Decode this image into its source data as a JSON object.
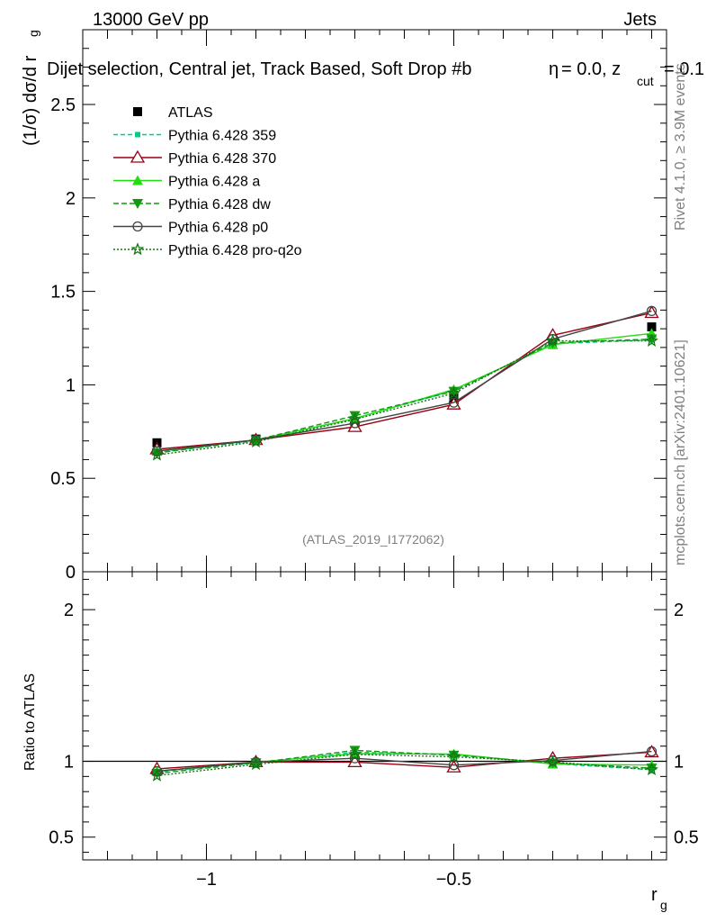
{
  "header": {
    "left": "13000 GeV pp",
    "right": "Jets",
    "selection_main": "Dijet selection, Central jet, Track Based, Soft Drop #b",
    "selection_tail": "= 0.0, z",
    "selection_sub": "cut",
    "selection_end": "= 0.1",
    "beta_symbol": "η"
  },
  "side_labels": {
    "rivet": "Rivet 4.1.0, ≥ 3.9M events",
    "mcplots": "mcplots.cern.ch [arXiv:2401.10621]"
  },
  "watermark": "(ATLAS_2019_I1772062)",
  "chart_data": [
    {
      "type": "line",
      "panel": "main",
      "ylabel": "(1/σ) dσ/d r",
      "ylabel_sub": "g",
      "xlim": [
        -1.25,
        -0.07
      ],
      "ylim": [
        0,
        2.9
      ],
      "yticks": [
        0,
        0.5,
        1,
        1.5,
        2,
        2.5
      ],
      "ytick_labels": [
        "0",
        "0.5",
        "1",
        "1.5",
        "2",
        "2.5"
      ],
      "x": [
        -1.1,
        -0.9,
        -0.7,
        -0.5,
        -0.3,
        -0.1
      ],
      "series": [
        {
          "name": "ATLAS",
          "color": "#000000",
          "marker": "square-filled",
          "dash": "none",
          "values": [
            0.69,
            0.71,
            0.78,
            0.93,
            1.24,
            1.31
          ]
        },
        {
          "name": "Pythia 6.428 359",
          "color": "#00cc88",
          "marker": "square-small",
          "dash": "5,3",
          "values": [
            0.64,
            0.7,
            0.82,
            0.97,
            1.22,
            1.24
          ]
        },
        {
          "name": "Pythia 6.428 370",
          "color": "#990011",
          "marker": "triangle-open",
          "dash": "none",
          "values": [
            0.655,
            0.705,
            0.775,
            0.895,
            1.265,
            1.385
          ]
        },
        {
          "name": "Pythia 6.428 a",
          "color": "#22dd11",
          "marker": "triangle-filled",
          "dash": "none",
          "values": [
            0.645,
            0.705,
            0.82,
            0.975,
            1.215,
            1.275
          ]
        },
        {
          "name": "Pythia 6.428 dw",
          "color": "#119911",
          "marker": "triangle-down-filled",
          "dash": "6,3",
          "values": [
            0.635,
            0.705,
            0.835,
            0.965,
            1.225,
            1.245
          ]
        },
        {
          "name": "Pythia 6.428 p0",
          "color": "#444444",
          "marker": "circle-open",
          "dash": "none",
          "values": [
            0.645,
            0.705,
            0.795,
            0.905,
            1.245,
            1.395
          ]
        },
        {
          "name": "Pythia 6.428 pro-q2o",
          "color": "#117711",
          "marker": "star",
          "dash": "2,2",
          "values": [
            0.625,
            0.695,
            0.815,
            0.955,
            1.235,
            1.235
          ]
        }
      ]
    },
    {
      "type": "line",
      "panel": "ratio",
      "ylabel": "Ratio to ATLAS",
      "xlabel": "r",
      "xlabel_sub": "g",
      "xlim": [
        -1.25,
        -0.07
      ],
      "ylim": [
        0.35,
        2.25
      ],
      "yticks": [
        0.5,
        1,
        2
      ],
      "ytick_labels": [
        "0.5",
        "1",
        "2"
      ],
      "xticks": [
        -1,
        -0.5
      ],
      "xtick_labels": [
        "−1",
        "−0.5"
      ],
      "x": [
        -1.1,
        -0.9,
        -0.7,
        -0.5,
        -0.3,
        -0.1
      ],
      "series": [
        {
          "name": "Pythia 6.428 359",
          "color": "#00cc88",
          "marker": "square-small",
          "dash": "5,3",
          "values": [
            0.93,
            0.99,
            1.06,
            1.045,
            0.985,
            0.945
          ]
        },
        {
          "name": "Pythia 6.428 370",
          "color": "#990011",
          "marker": "triangle-open",
          "dash": "none",
          "values": [
            0.95,
            0.995,
            0.995,
            0.96,
            1.02,
            1.06
          ]
        },
        {
          "name": "Pythia 6.428 a",
          "color": "#22dd11",
          "marker": "triangle-filled",
          "dash": "none",
          "values": [
            0.935,
            0.995,
            1.05,
            1.048,
            0.982,
            0.975
          ]
        },
        {
          "name": "Pythia 6.428 dw",
          "color": "#119911",
          "marker": "triangle-down-filled",
          "dash": "6,3",
          "values": [
            0.92,
            0.99,
            1.072,
            1.04,
            0.99,
            0.955
          ]
        },
        {
          "name": "Pythia 6.428 p0",
          "color": "#444444",
          "marker": "circle-open",
          "dash": "none",
          "values": [
            0.935,
            0.995,
            1.02,
            0.975,
            1.005,
            1.065
          ]
        },
        {
          "name": "Pythia 6.428 pro-q2o",
          "color": "#117711",
          "marker": "star",
          "dash": "2,2",
          "values": [
            0.905,
            0.98,
            1.045,
            1.03,
            0.995,
            0.945
          ]
        }
      ]
    }
  ]
}
